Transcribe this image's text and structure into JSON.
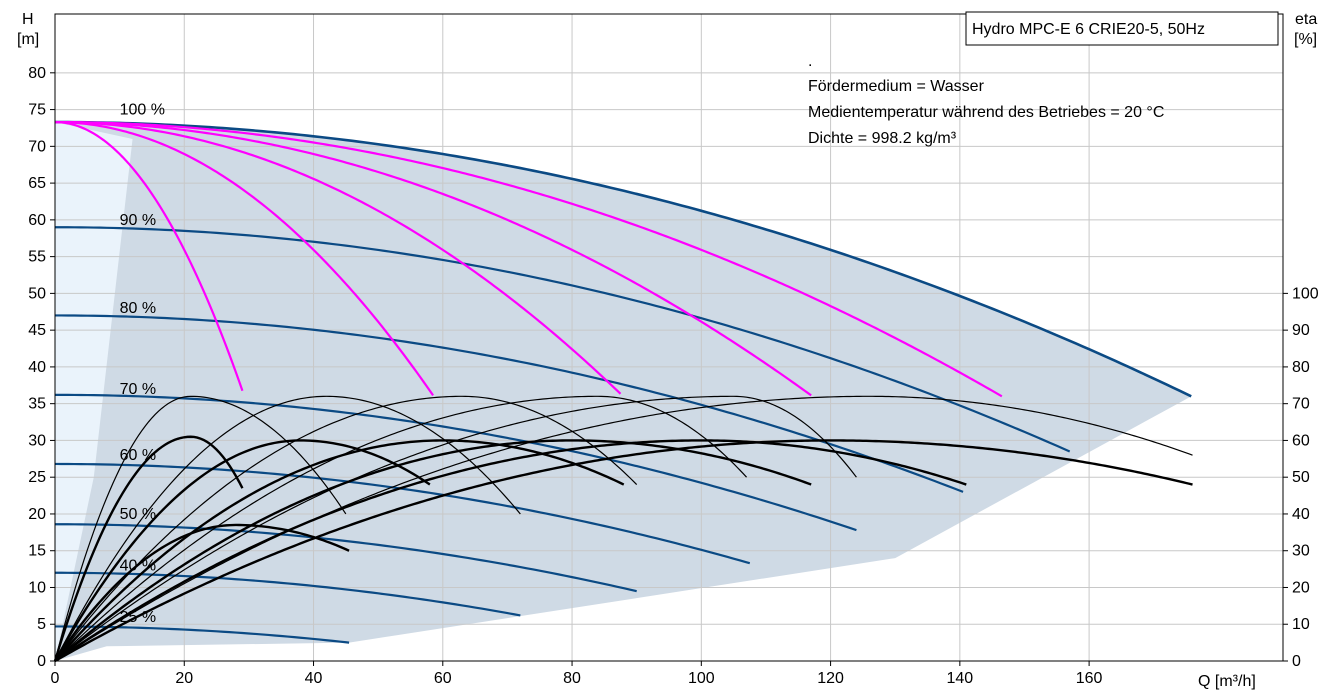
{
  "chart_data": {
    "type": "line",
    "title": "Hydro MPC-E 6 CRIE20-5, 50Hz",
    "notes": [
      ".",
      "Fördermedium = Wasser",
      "Medientemperatur während des Betriebes = 20 °C",
      "Dichte = 998.2 kg/m³"
    ],
    "x_axis": {
      "label": "Q [m³/h]",
      "min": 0,
      "max": 180,
      "ticks": [
        0,
        20,
        40,
        60,
        80,
        100,
        120,
        140,
        160
      ]
    },
    "y_left": {
      "label_line1": "H",
      "label_line2": "[m]",
      "min": 0,
      "max": 88,
      "ticks": [
        0,
        5,
        10,
        15,
        20,
        25,
        30,
        35,
        40,
        45,
        50,
        55,
        60,
        65,
        70,
        75,
        80
      ]
    },
    "y_right": {
      "label_line1": "eta",
      "label_line2": "[%]",
      "ticks": [
        0,
        10,
        20,
        30,
        40,
        50,
        60,
        70,
        80,
        90,
        100
      ]
    },
    "speed_labels": [
      {
        "text": "100 %",
        "h": 75
      },
      {
        "text": "90 %",
        "h": 60
      },
      {
        "text": "80 %",
        "h": 48
      },
      {
        "text": "70 %",
        "h": 37
      },
      {
        "text": "60 %",
        "h": 28
      },
      {
        "text": "50 %",
        "h": 20
      },
      {
        "text": "40 %",
        "h": 13
      },
      {
        "text": "25 %",
        "h": 6
      }
    ],
    "speed_curves": [
      {
        "speed": 100,
        "shutoff_head": 73.3,
        "qmax": 175.8,
        "hend": 36.0
      },
      {
        "speed": 90,
        "shutoff_head": 59.0,
        "qmax": 157.0,
        "hend": 28.5
      },
      {
        "speed": 80,
        "shutoff_head": 47.0,
        "qmax": 140.5,
        "hend": 23.0
      },
      {
        "speed": 70,
        "shutoff_head": 36.2,
        "qmax": 124.0,
        "hend": 17.8
      },
      {
        "speed": 60,
        "shutoff_head": 26.8,
        "qmax": 107.5,
        "hend": 13.3
      },
      {
        "speed": 50,
        "shutoff_head": 18.6,
        "qmax": 90.0,
        "hend": 9.5
      },
      {
        "speed": 40,
        "shutoff_head": 12.0,
        "qmax": 72.0,
        "hend": 6.2
      },
      {
        "speed": 25,
        "shutoff_head": 4.7,
        "qmax": 45.5,
        "hend": 2.5
      }
    ],
    "pump_count_curves": [
      {
        "pumps": 1,
        "qend": 29.3,
        "hend": 36.0
      },
      {
        "pumps": 2,
        "qend": 58.6,
        "hend": 36.0
      },
      {
        "pumps": 3,
        "qend": 87.9,
        "hend": 36.0
      },
      {
        "pumps": 4,
        "qend": 117.2,
        "hend": 36.0
      },
      {
        "pumps": 5,
        "qend": 146.5,
        "hend": 36.0
      }
    ],
    "efficiency_curves_full_speed": [
      {
        "pumps": 1,
        "peak_q": 21,
        "peak_eta": 72,
        "end_q": 45,
        "end_eta": 40
      },
      {
        "pumps": 2,
        "peak_q": 42,
        "peak_eta": 72,
        "end_q": 72,
        "end_eta": 40
      },
      {
        "pumps": 3,
        "peak_q": 63,
        "peak_eta": 72,
        "end_q": 90,
        "end_eta": 48
      },
      {
        "pumps": 4,
        "peak_q": 84,
        "peak_eta": 72,
        "end_q": 107,
        "end_eta": 50
      },
      {
        "pumps": 5,
        "peak_q": 105,
        "peak_eta": 72,
        "end_q": 124,
        "end_eta": 50
      },
      {
        "pumps": 6,
        "peak_q": 126,
        "peak_eta": 72,
        "end_q": 176,
        "end_eta": 56
      }
    ],
    "efficiency_curves_part_speed": [
      {
        "pumps": 1,
        "peak_q": 21,
        "peak_eta": 61,
        "end_q": 29,
        "end_eta": 47
      },
      {
        "pumps": 2,
        "peak_q": 38,
        "peak_eta": 60,
        "end_q": 58,
        "end_eta": 48
      },
      {
        "pumps": 3,
        "peak_q": 60,
        "peak_eta": 60,
        "end_q": 88,
        "end_eta": 48
      },
      {
        "pumps": 4,
        "peak_q": 80,
        "peak_eta": 60,
        "end_q": 117,
        "end_eta": 48
      },
      {
        "pumps": 5,
        "peak_q": 100,
        "peak_eta": 60,
        "end_q": 141,
        "end_eta": 48
      },
      {
        "pumps": 6,
        "peak_q": 120,
        "peak_eta": 60,
        "end_q": 176,
        "end_eta": 48
      }
    ],
    "efficiency_curves_low_speed": [
      {
        "pumps": 1,
        "peak_q": 28,
        "peak_eta": 37,
        "end_q": 45.5,
        "end_eta": 30
      }
    ],
    "colors": {
      "speed_curve": "#0b4a84",
      "pump_curve": "#ff00ff",
      "efficiency": "#000000",
      "area": "#cfdae5",
      "area_light": "#eaf3fb",
      "grid": "#c8c8c8"
    }
  }
}
